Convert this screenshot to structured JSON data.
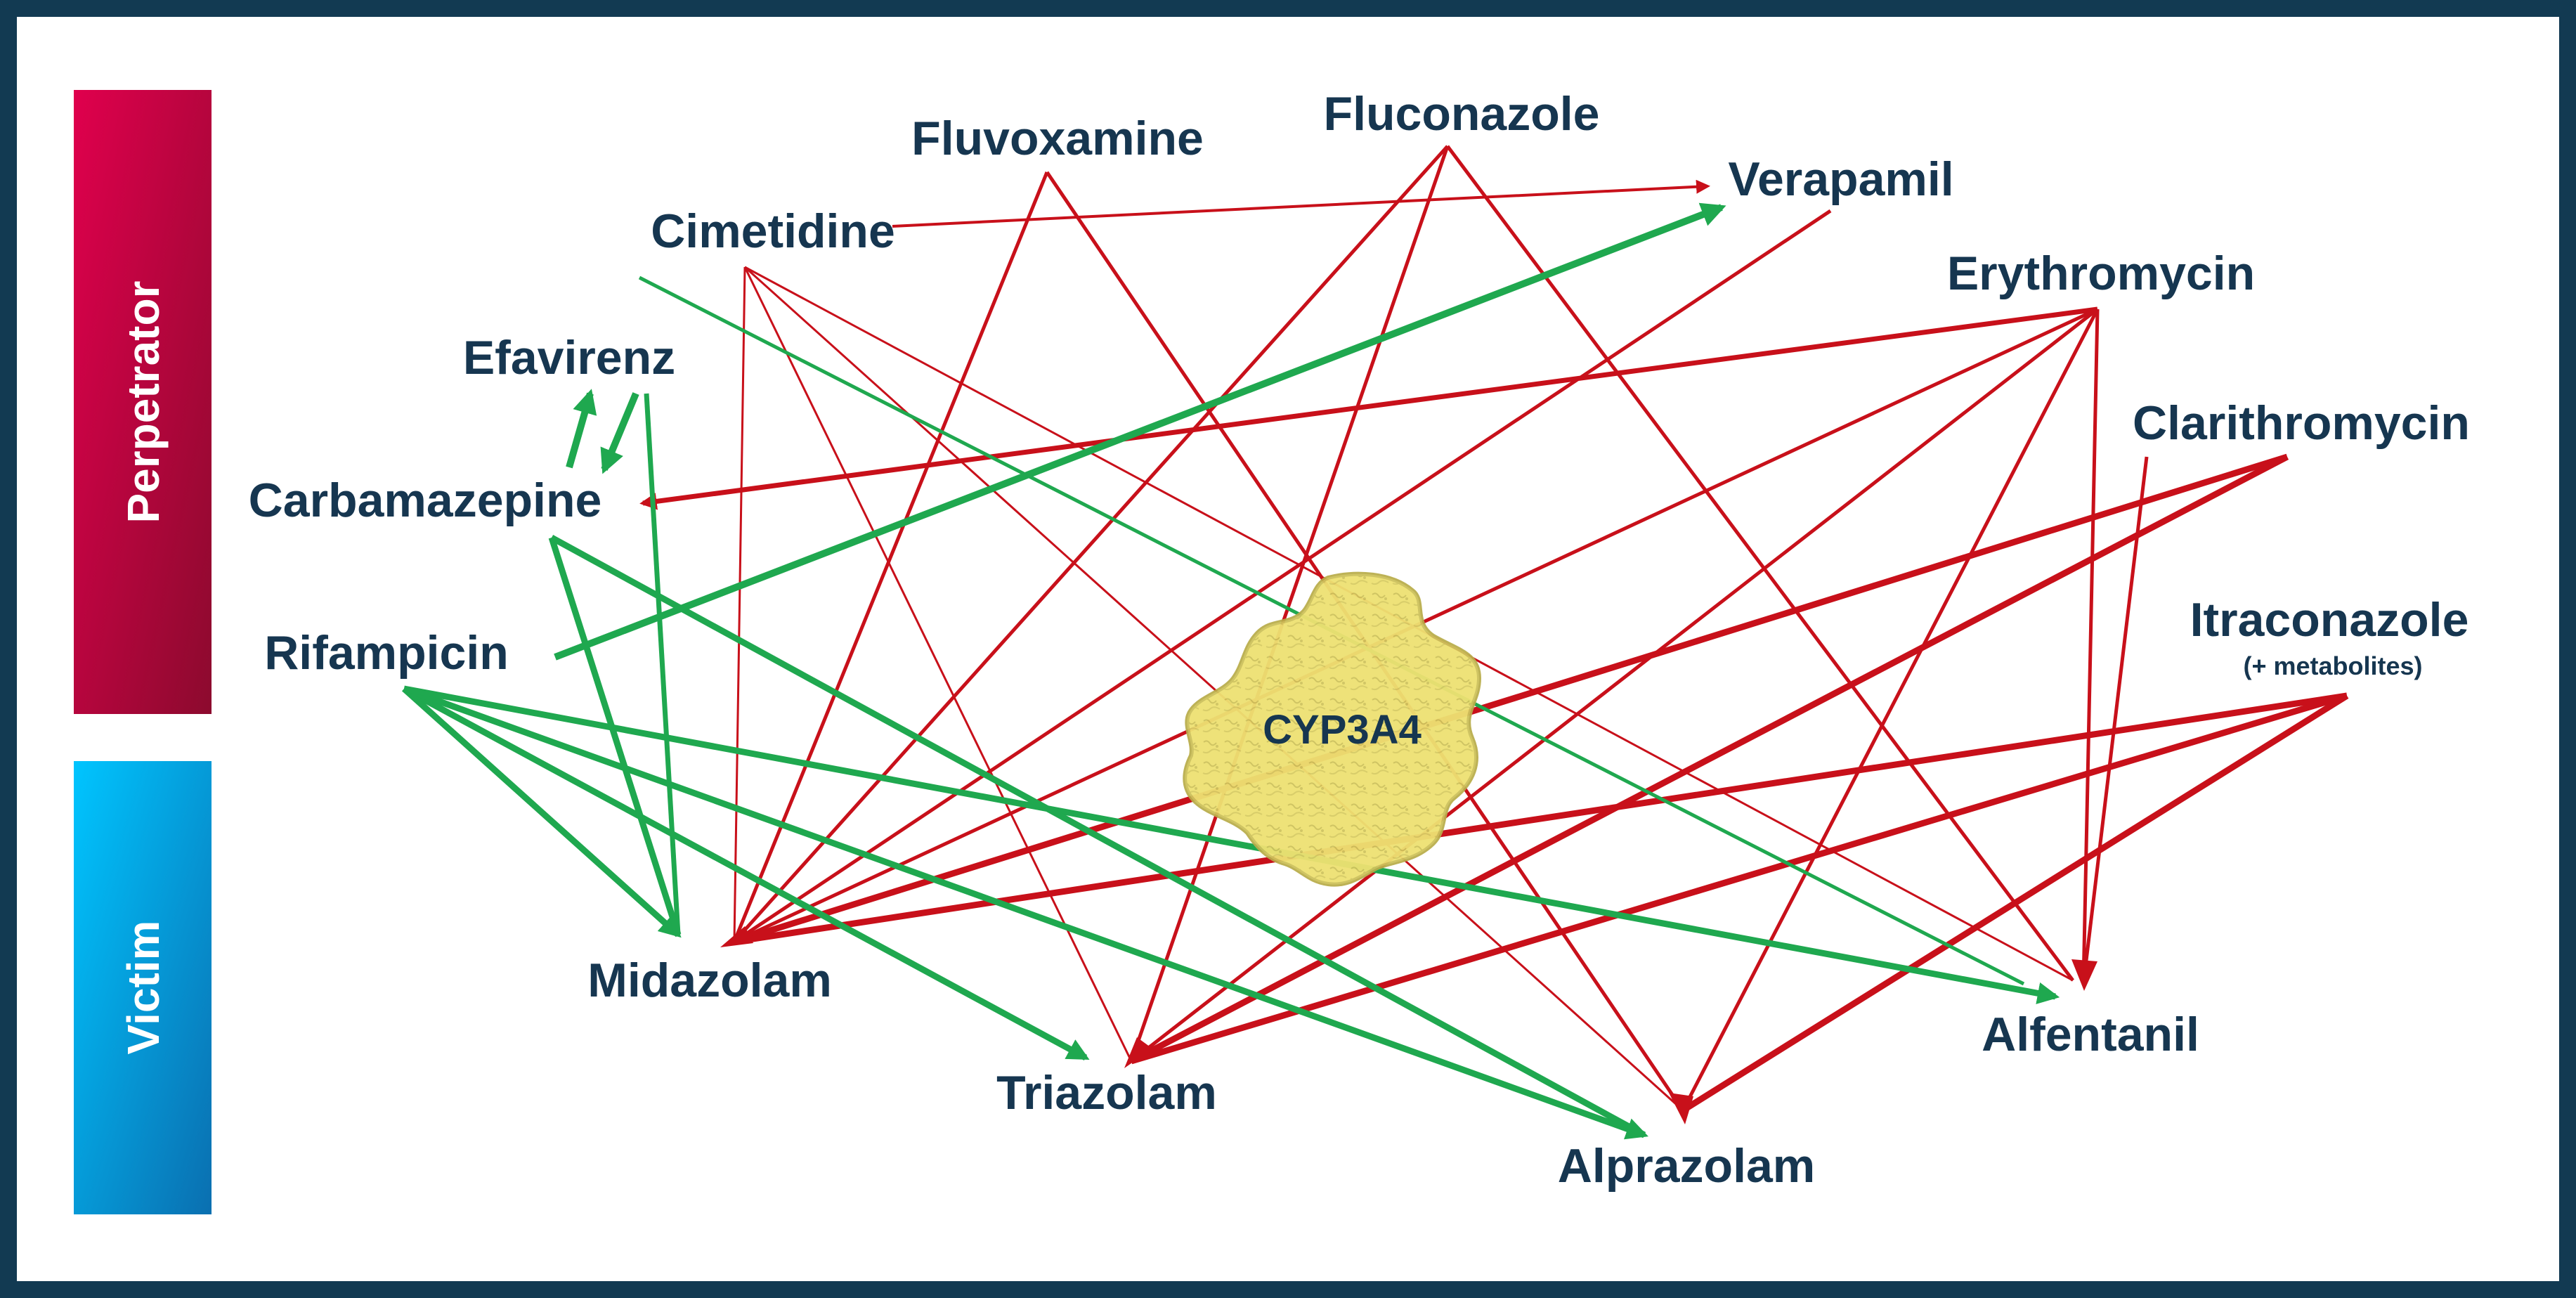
{
  "colors": {
    "frame": "#123a52",
    "label": "#163650",
    "inhibition_arrow": "#c8101a",
    "induction_arrow": "#1fa84f",
    "perpetrator_bar": "#c8174a",
    "victim_bar": "#1fa3dd",
    "enzyme_fill": "#ecdf6e"
  },
  "sidebar": {
    "perpetrator_label": "Perpetrator",
    "victim_label": "Victim"
  },
  "center": {
    "label": "CYP3A4",
    "icon": "protein-structure-icon"
  },
  "perpetrators": {
    "fluvoxamine": "Fluvoxamine",
    "fluconazole": "Fluconazole",
    "cimetidine": "Cimetidine",
    "erythromycin": "Erythromycin",
    "efavirenz": "Efavirenz",
    "clarithromycin": "Clarithromycin",
    "rifampicin": "Rifampicin",
    "itraconazole": "Itraconazole",
    "itraconazole_note": "(+ metabolites)"
  },
  "victims": {
    "verapamil": "Verapamil",
    "carbamazepine": "Carbamazepine",
    "midazolam": "Midazolam",
    "triazolam": "Triazolam",
    "alprazolam": "Alprazolam",
    "alfentanil": "Alfentanil"
  },
  "interactions": [
    {
      "from": "Cimetidine",
      "to": "Verapamil",
      "effect": "inhibition"
    },
    {
      "from": "Cimetidine",
      "to": "Midazolam",
      "effect": "inhibition"
    },
    {
      "from": "Cimetidine",
      "to": "Triazolam",
      "effect": "inhibition"
    },
    {
      "from": "Cimetidine",
      "to": "Alprazolam",
      "effect": "inhibition"
    },
    {
      "from": "Cimetidine",
      "to": "Alfentanil",
      "effect": "inhibition"
    },
    {
      "from": "Fluvoxamine",
      "to": "Midazolam",
      "effect": "inhibition"
    },
    {
      "from": "Fluvoxamine",
      "to": "Alprazolam",
      "effect": "inhibition"
    },
    {
      "from": "Fluconazole",
      "to": "Midazolam",
      "effect": "inhibition"
    },
    {
      "from": "Fluconazole",
      "to": "Triazolam",
      "effect": "inhibition"
    },
    {
      "from": "Fluconazole",
      "to": "Alfentanil",
      "effect": "inhibition"
    },
    {
      "from": "Verapamil",
      "to": "Midazolam",
      "effect": "inhibition"
    },
    {
      "from": "Erythromycin",
      "to": "Carbamazepine",
      "effect": "inhibition"
    },
    {
      "from": "Erythromycin",
      "to": "Midazolam",
      "effect": "inhibition"
    },
    {
      "from": "Erythromycin",
      "to": "Triazolam",
      "effect": "inhibition"
    },
    {
      "from": "Erythromycin",
      "to": "Alprazolam",
      "effect": "inhibition"
    },
    {
      "from": "Erythromycin",
      "to": "Alfentanil",
      "effect": "inhibition"
    },
    {
      "from": "Clarithromycin",
      "to": "Midazolam",
      "effect": "inhibition"
    },
    {
      "from": "Clarithromycin",
      "to": "Triazolam",
      "effect": "inhibition"
    },
    {
      "from": "Clarithromycin",
      "to": "Alfentanil",
      "effect": "inhibition"
    },
    {
      "from": "Itraconazole",
      "to": "Midazolam",
      "effect": "inhibition"
    },
    {
      "from": "Itraconazole",
      "to": "Triazolam",
      "effect": "inhibition"
    },
    {
      "from": "Itraconazole",
      "to": "Alprazolam",
      "effect": "inhibition"
    },
    {
      "from": "Rifampicin",
      "to": "Verapamil",
      "effect": "induction"
    },
    {
      "from": "Rifampicin",
      "to": "Midazolam",
      "effect": "induction"
    },
    {
      "from": "Rifampicin",
      "to": "Triazolam",
      "effect": "induction"
    },
    {
      "from": "Rifampicin",
      "to": "Alprazolam",
      "effect": "induction"
    },
    {
      "from": "Rifampicin",
      "to": "Alfentanil",
      "effect": "induction"
    },
    {
      "from": "Efavirenz",
      "to": "Carbamazepine",
      "effect": "induction"
    },
    {
      "from": "Carbamazepine",
      "to": "Efavirenz",
      "effect": "induction"
    },
    {
      "from": "Efavirenz",
      "to": "Midazolam",
      "effect": "induction"
    },
    {
      "from": "Efavirenz",
      "to": "Alfentanil",
      "effect": "induction"
    },
    {
      "from": "Carbamazepine",
      "to": "Midazolam",
      "effect": "induction"
    },
    {
      "from": "Carbamazepine",
      "to": "Alprazolam",
      "effect": "induction"
    }
  ]
}
